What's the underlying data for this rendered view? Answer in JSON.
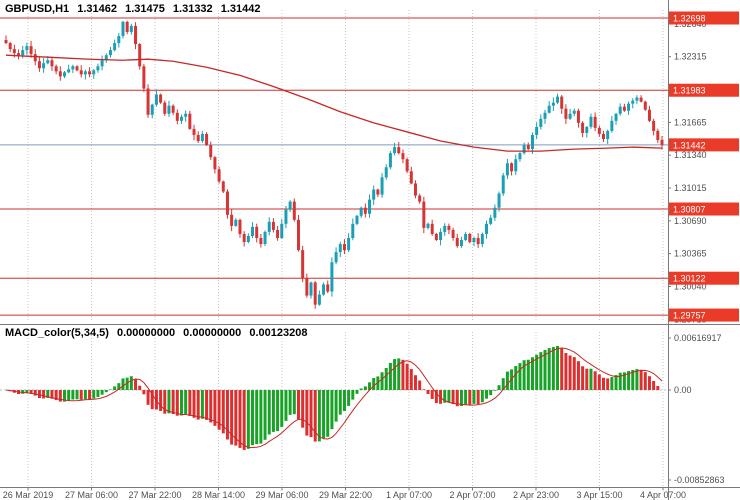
{
  "chart_header": {
    "symbol": "GBPUSD,H1",
    "open": "1.31462",
    "high": "1.31475",
    "low": "1.31332",
    "close": "1.31442"
  },
  "indicator_header": {
    "name": "MACD_color(5,34,5)",
    "value1": "0.00000000",
    "value2": "0.00000000",
    "value3": "0.00123208"
  },
  "price_axis": {
    "grid_labels": [
      "1.32640",
      "1.32315",
      "1.31990",
      "1.31665",
      "1.31340",
      "1.31015",
      "1.30690",
      "1.30365",
      "1.30040",
      "1.29715"
    ],
    "level_labels": [
      "1.32698",
      "1.31983",
      "1.30807",
      "1.30122",
      "1.29757"
    ],
    "current_label": "1.31442"
  },
  "time_axis": {
    "labels": [
      "26 Mar 2019",
      "27 Mar 06:00",
      "27 Mar 22:00",
      "28 Mar 14:00",
      "29 Mar 06:00",
      "29 Mar 22:00",
      "1 Apr 07:00",
      "2 Apr 07:00",
      "2 Apr 23:00",
      "3 Apr 15:00",
      "4 Apr 07:00"
    ]
  },
  "macd_axis": {
    "max_label": "0.00616917",
    "zero_label": "0.00",
    "min_label": "-0.00852863"
  },
  "colors": {
    "background": "#ffffff",
    "grid": "#c9c9c9",
    "axis_line": "#7a7a7a",
    "axis_text": "#4f4f4f",
    "header_text": "#000000",
    "bull": "#1a9fb4",
    "bear": "#d53535",
    "ma_line": "#c62828",
    "level_line": "#cf2f2f",
    "badge": "#ea3a28",
    "badge_text": "#ffffff",
    "bid_line": "#7f9db9",
    "macd_up": "#18a327",
    "macd_down": "#dd2f2f",
    "signal_line": "#c62828",
    "zero_line": "#bdbdbd"
  },
  "chart_data": {
    "type": "candlestick",
    "symbol": "GBPUSD",
    "timeframe": "H1",
    "price_axis_range": [
      1.2965,
      1.3285
    ],
    "grid_step": 0.00325,
    "current_price": 1.31442,
    "levels": [
      1.32698,
      1.31983,
      1.30807,
      1.30122,
      1.29757
    ],
    "first_open": 1.3248,
    "closes": [
      1.3245,
      1.3239,
      1.3235,
      1.3233,
      1.3238,
      1.3242,
      1.3234,
      1.3227,
      1.322,
      1.3225,
      1.3228,
      1.3222,
      1.3217,
      1.3212,
      1.3216,
      1.3219,
      1.3222,
      1.3218,
      1.3214,
      1.3217,
      1.3214,
      1.3218,
      1.3222,
      1.3228,
      1.3233,
      1.3238,
      1.3245,
      1.3252,
      1.3266,
      1.3256,
      1.3262,
      1.3244,
      1.3222,
      1.32,
      1.3174,
      1.3184,
      1.3194,
      1.3186,
      1.3175,
      1.3183,
      1.3176,
      1.3168,
      1.3172,
      1.3175,
      1.316,
      1.3154,
      1.3148,
      1.3155,
      1.3144,
      1.3132,
      1.312,
      1.3108,
      1.3098,
      1.3075,
      1.3064,
      1.307,
      1.3056,
      1.3048,
      1.3054,
      1.3063,
      1.3052,
      1.3046,
      1.3058,
      1.3068,
      1.306,
      1.3052,
      1.3066,
      1.308,
      1.3088,
      1.307,
      1.304,
      1.3012,
      1.2995,
      1.3008,
      1.2986,
      1.2996,
      1.3006,
      1.2999,
      1.3028,
      1.3038,
      1.3046,
      1.304,
      1.3052,
      1.3066,
      1.3074,
      1.3082,
      1.3076,
      1.309,
      1.31,
      1.3095,
      1.3112,
      1.3122,
      1.3136,
      1.3142,
      1.3136,
      1.313,
      1.3118,
      1.3106,
      1.3094,
      1.3088,
      1.3062,
      1.3066,
      1.3056,
      1.305,
      1.3058,
      1.3064,
      1.306,
      1.3052,
      1.3044,
      1.305,
      1.3056,
      1.3048,
      1.3052,
      1.3046,
      1.3056,
      1.3066,
      1.3072,
      1.3082,
      1.3096,
      1.3114,
      1.3126,
      1.3118,
      1.313,
      1.3136,
      1.3144,
      1.314,
      1.3154,
      1.3162,
      1.317,
      1.3176,
      1.3183,
      1.3186,
      1.3192,
      1.318,
      1.317,
      1.3175,
      1.3178,
      1.3166,
      1.3156,
      1.3162,
      1.3172,
      1.3161,
      1.3155,
      1.315,
      1.3158,
      1.3168,
      1.3175,
      1.3182,
      1.3178,
      1.3185,
      1.3188,
      1.3191,
      1.3187,
      1.3179,
      1.3168,
      1.3158,
      1.3149,
      1.31442
    ],
    "moving_average_points": [
      [
        0,
        1.3233
      ],
      [
        10,
        1.3231
      ],
      [
        20,
        1.3229
      ],
      [
        28,
        1.3228
      ],
      [
        34,
        1.3229
      ],
      [
        40,
        1.3227
      ],
      [
        48,
        1.3221
      ],
      [
        56,
        1.3213
      ],
      [
        64,
        1.3202
      ],
      [
        72,
        1.319
      ],
      [
        80,
        1.3177
      ],
      [
        88,
        1.3166
      ],
      [
        96,
        1.3157
      ],
      [
        104,
        1.3148
      ],
      [
        112,
        1.3142
      ],
      [
        120,
        1.3138
      ],
      [
        128,
        1.3138
      ],
      [
        136,
        1.314
      ],
      [
        144,
        1.3141
      ],
      [
        150,
        1.3142
      ],
      [
        157,
        1.3141
      ]
    ],
    "indicator": {
      "name": "MACD_color",
      "fast": 5,
      "slow": 34,
      "signal": 5
    }
  }
}
